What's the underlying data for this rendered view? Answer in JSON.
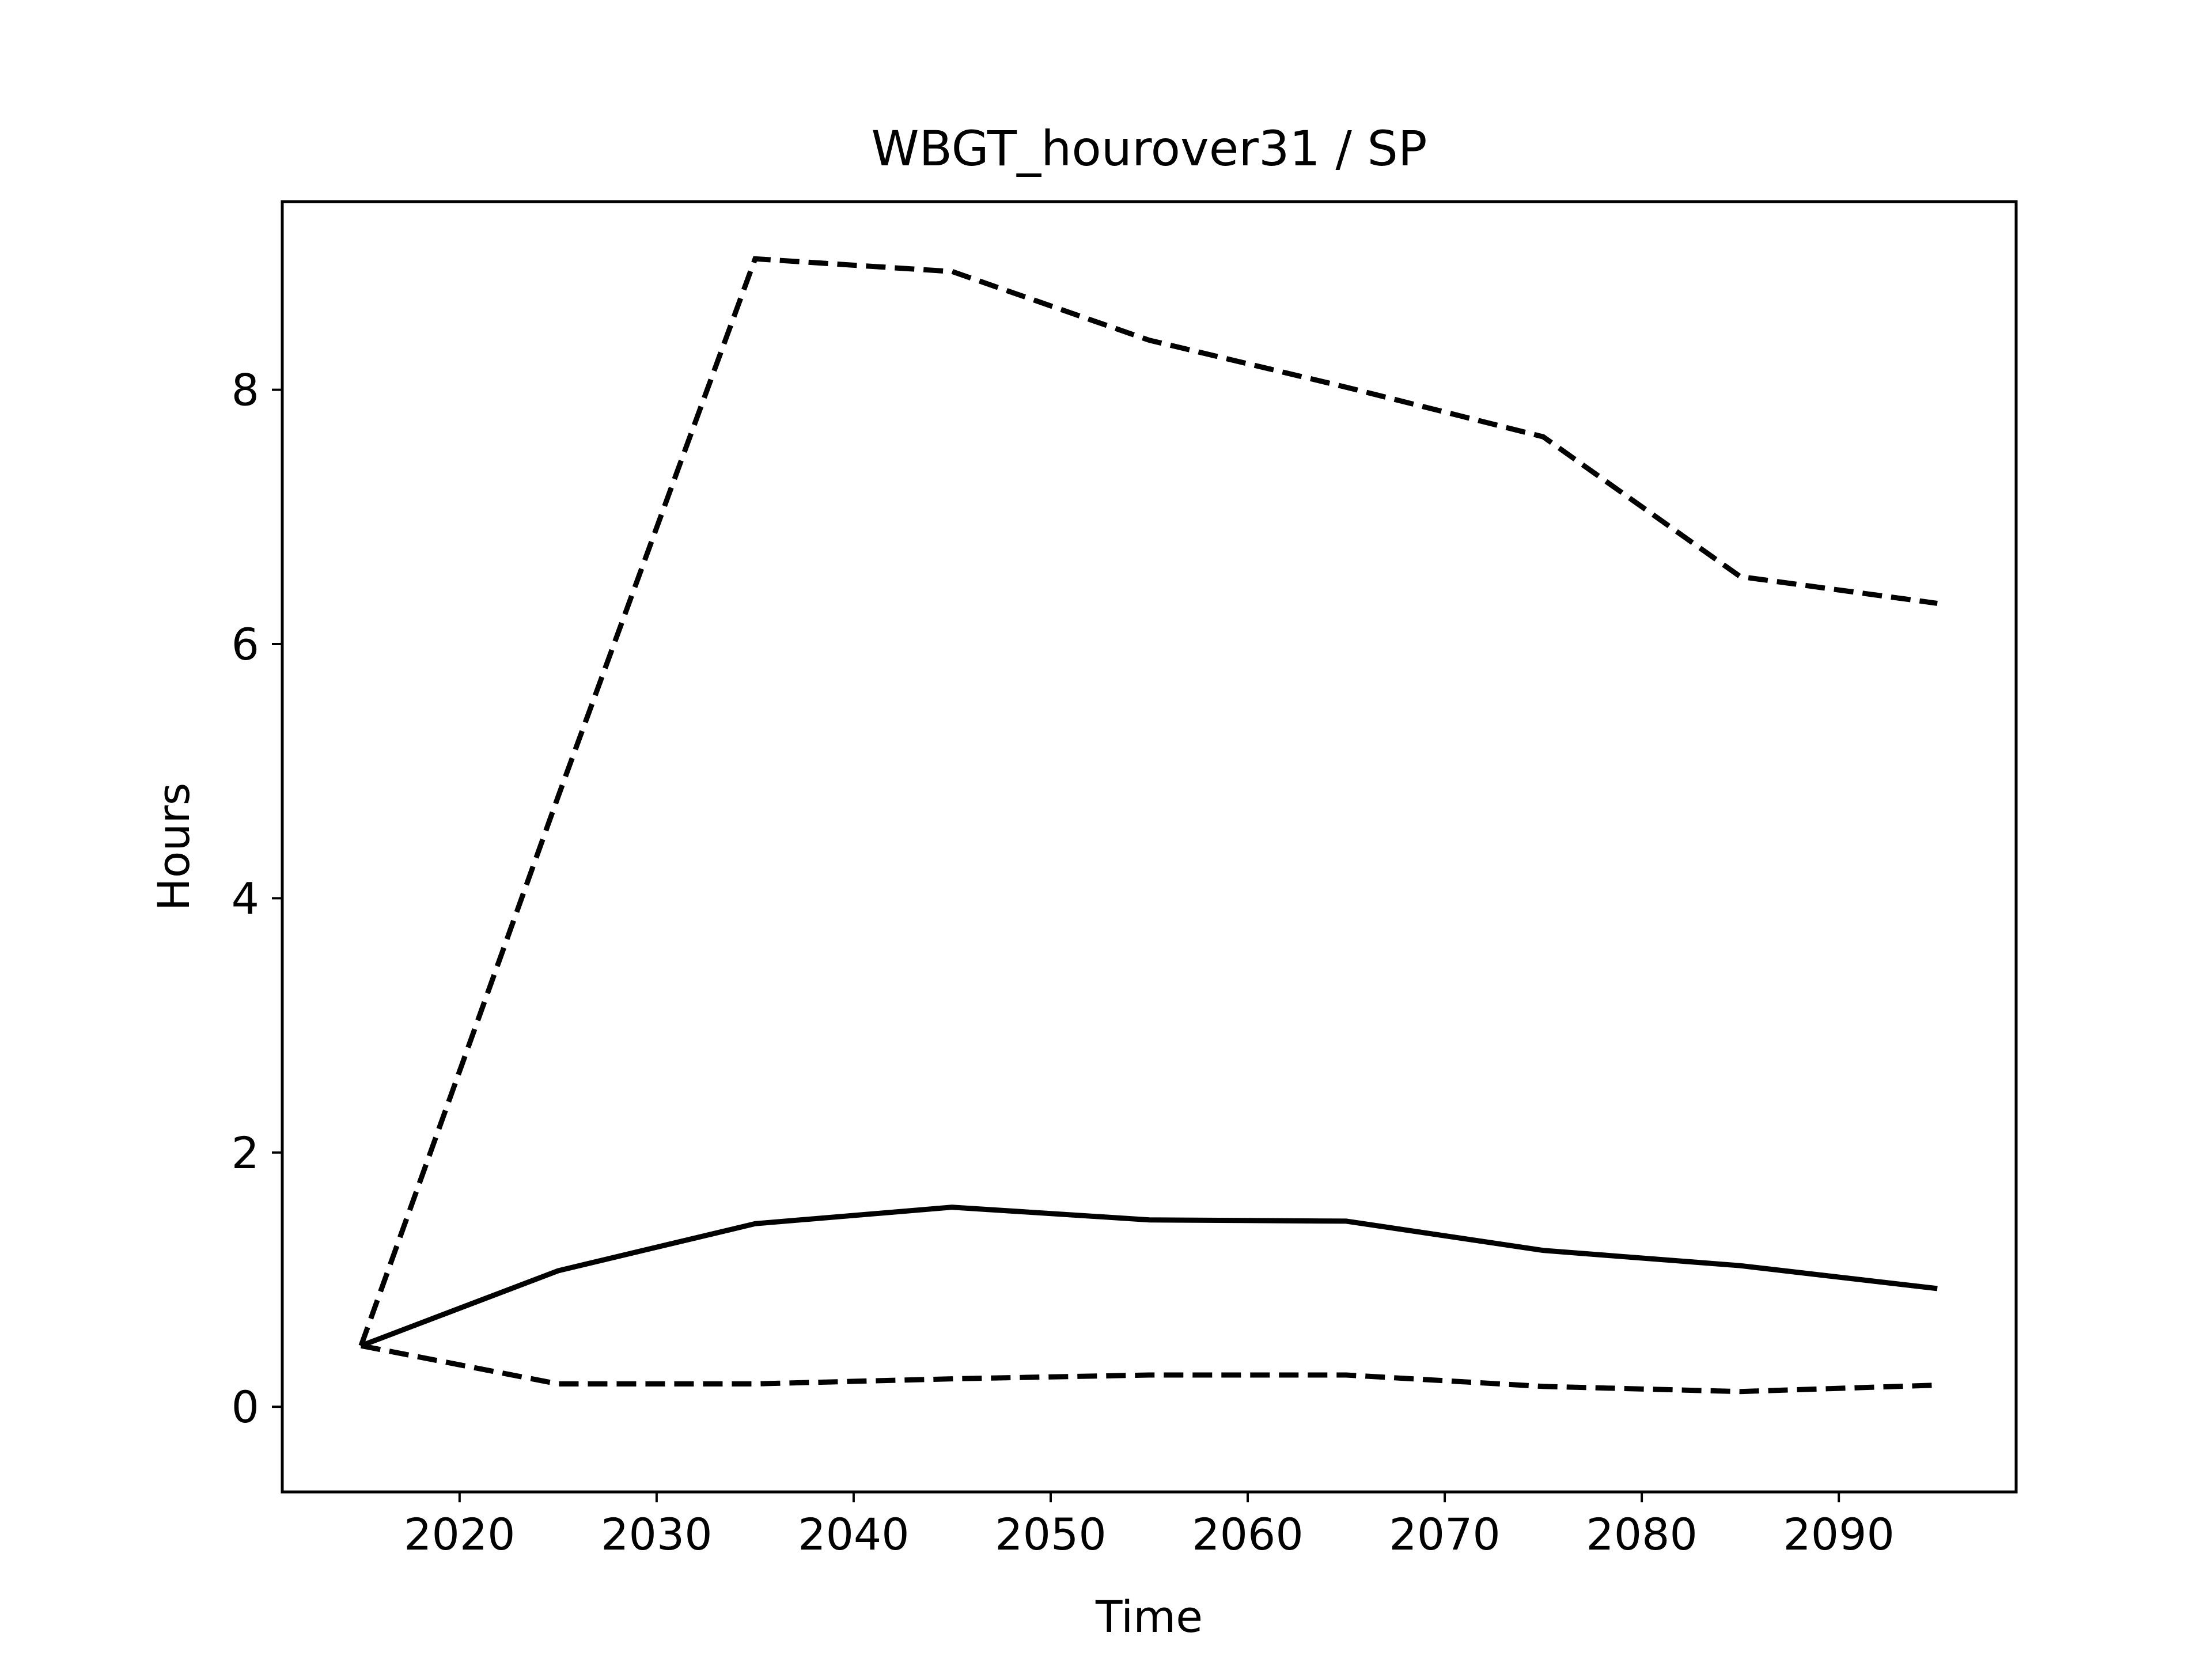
{
  "chart_data": {
    "type": "line",
    "title": "WBGT_hourover31 / SP",
    "xlabel": "Time",
    "ylabel": "Hours",
    "x": [
      2015,
      2025,
      2035,
      2045,
      2055,
      2065,
      2075,
      2085,
      2095
    ],
    "xlim": [
      2011,
      2099
    ],
    "ylim": [
      -0.67,
      9.48
    ],
    "xticks": [
      2020,
      2030,
      2040,
      2050,
      2060,
      2070,
      2080,
      2090
    ],
    "yticks": [
      0,
      2,
      4,
      6,
      8
    ],
    "grid": false,
    "series": [
      {
        "style": "solid",
        "color": "#000000",
        "values": [
          0.48,
          1.07,
          1.44,
          1.57,
          1.47,
          1.46,
          1.23,
          1.11,
          0.93
        ]
      },
      {
        "style": "dashed",
        "color": "#000000",
        "values": [
          0.48,
          4.8,
          9.03,
          8.93,
          8.39,
          8.02,
          7.63,
          6.53,
          6.32
        ]
      },
      {
        "style": "dashed",
        "color": "#000000",
        "values": [
          0.48,
          0.18,
          0.18,
          0.22,
          0.25,
          0.25,
          0.16,
          0.12,
          0.17
        ]
      }
    ]
  }
}
